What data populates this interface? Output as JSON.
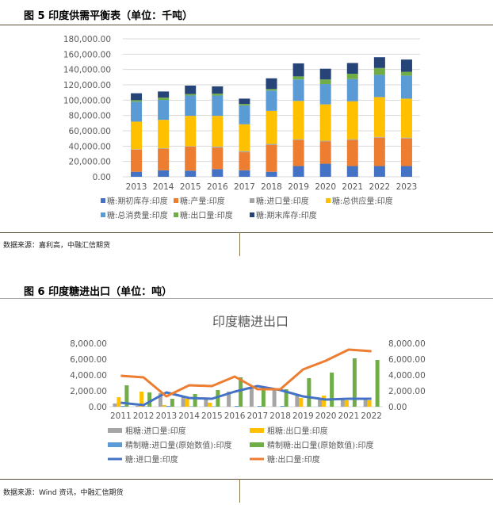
{
  "fig5": {
    "caption": "图 5 印度供需平衡表（单位：千吨）",
    "source": "数据来源：嘉利高，中融汇信期货"
  },
  "fig6": {
    "caption": "图 6 印度糖进出口（单位：吨）",
    "source": "数据来源：Wind 资讯，中融汇信期货"
  },
  "chart_data": [
    {
      "type": "bar",
      "stacked": true,
      "title": "",
      "categories": [
        "2013",
        "2014",
        "2015",
        "2016",
        "2017",
        "2018",
        "2019",
        "2020",
        "2021",
        "2022",
        "2023"
      ],
      "ylim": [
        0,
        180000
      ],
      "yticks": [
        "0.00",
        "20,000.00",
        "40,000.00",
        "60,000.00",
        "80,000.00",
        "100,000.00",
        "120,000.00",
        "140,000.00",
        "160,000.00",
        "180,000.00"
      ],
      "grid": true,
      "legend": "bottom",
      "series": [
        {
          "name": "糖:期初库存:印度",
          "color": "#4472c4",
          "values": [
            6500,
            8500,
            8000,
            10000,
            8500,
            6500,
            14000,
            17000,
            14000,
            14000,
            14000
          ]
        },
        {
          "name": "糖:产量:印度",
          "color": "#ed7d31",
          "values": [
            29000,
            28000,
            31500,
            28000,
            23500,
            35000,
            34000,
            29000,
            34000,
            37000,
            36000
          ]
        },
        {
          "name": "糖:进口量:印度",
          "color": "#a5a5a5",
          "values": [
            500,
            800,
            500,
            1500,
            1500,
            1500,
            1000,
            1000,
            1000,
            1000,
            1000
          ]
        },
        {
          "name": "糖:总供应量:印度",
          "color": "#ffc000",
          "values": [
            36000,
            37000,
            39500,
            40000,
            35000,
            43000,
            50000,
            47500,
            49500,
            52000,
            51000
          ]
        },
        {
          "name": "糖:总消费量:印度",
          "color": "#5b9bd5",
          "values": [
            26000,
            26000,
            26500,
            26500,
            24500,
            26500,
            28000,
            26500,
            29000,
            29000,
            30000
          ]
        },
        {
          "name": "糖:出口量:印度",
          "color": "#70ad47",
          "values": [
            2000,
            3000,
            2000,
            2500,
            2000,
            2000,
            4000,
            6000,
            7000,
            9000,
            5000
          ]
        },
        {
          "name": "糖:期末库存:印度",
          "color": "#264478",
          "values": [
            9000,
            8000,
            11000,
            9500,
            7000,
            14000,
            17000,
            14000,
            14000,
            14000,
            16000
          ]
        }
      ]
    },
    {
      "type": "bar+line",
      "title": "印度糖进出口",
      "categories": [
        "2011",
        "2012",
        "2013",
        "2014",
        "2015",
        "2016",
        "2017",
        "2018",
        "2019",
        "2020",
        "2021",
        "2022"
      ],
      "ylim": [
        0,
        8000
      ],
      "yticks": [
        "0.00",
        "2,000.00",
        "4,000.00",
        "6,000.00",
        "8,000.00"
      ],
      "legend": "bottom",
      "bar_series": [
        {
          "name": "粗糖:进口量:印度",
          "color": "#a5a5a5",
          "values": [
            400,
            100,
            1700,
            1300,
            1000,
            1900,
            2500,
            2100,
            1400,
            1000,
            1000,
            1000
          ]
        },
        {
          "name": "粗糖:出口量:印度",
          "color": "#ffc000",
          "values": [
            1200,
            1900,
            200,
            1000,
            500,
            0,
            0,
            0,
            1100,
            1400,
            800,
            800
          ]
        },
        {
          "name": "精制糖:进口量(原始数值):印度",
          "color": "#5b9bd5",
          "values": [
            100,
            50,
            100,
            50,
            50,
            100,
            100,
            100,
            0,
            0,
            0,
            0
          ]
        },
        {
          "name": "精制糖:出口量(原始数值):印度",
          "color": "#70ad47",
          "values": [
            2700,
            1800,
            1000,
            1600,
            2100,
            3700,
            2200,
            2200,
            3600,
            4300,
            6100,
            5900
          ]
        }
      ],
      "line_series": [
        {
          "name": "糖:进口量:印度",
          "color": "#4472c4",
          "values": [
            500,
            200,
            1800,
            1100,
            1000,
            1900,
            2600,
            2100,
            1300,
            900,
            1000,
            1000
          ]
        },
        {
          "name": "糖:出口量:印度",
          "color": "#ed7d31",
          "values": [
            3900,
            3700,
            1300,
            2700,
            2600,
            3800,
            2200,
            2200,
            4700,
            5800,
            7200,
            7000
          ]
        }
      ]
    }
  ]
}
